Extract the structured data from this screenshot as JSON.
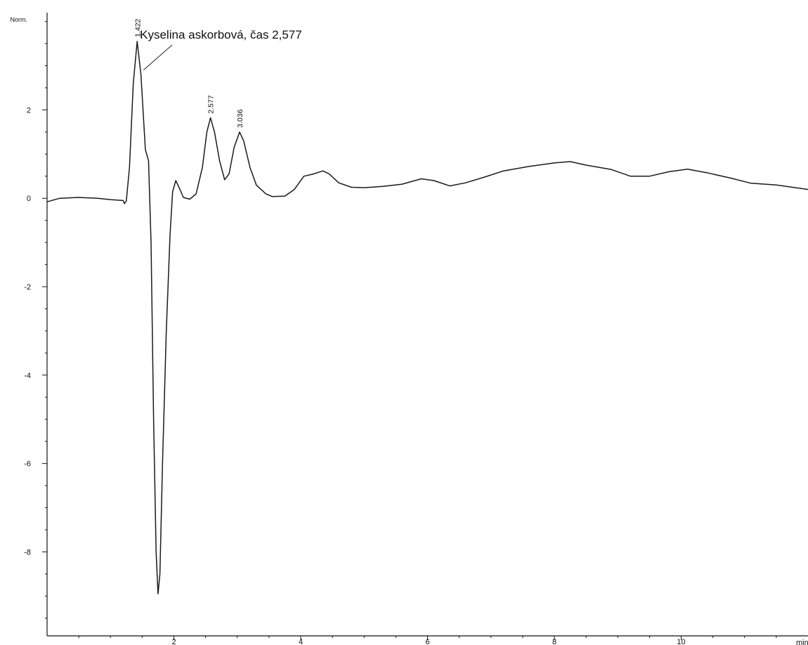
{
  "chart_data": {
    "type": "line",
    "title": "",
    "ylabel": "Norm.",
    "xlabel": "min",
    "xlim": [
      0.0,
      12.0
    ],
    "ylim": [
      -9.9,
      4.2
    ],
    "x_ticks": [
      2,
      4,
      6,
      8,
      10
    ],
    "y_ticks": [
      2,
      0,
      -2,
      -4,
      -6,
      -8
    ],
    "grid": false,
    "line_color": "#1a1a1a",
    "series": [
      {
        "name": "",
        "points": [
          [
            0.0,
            -0.08
          ],
          [
            0.2,
            0.0
          ],
          [
            0.5,
            0.02
          ],
          [
            0.8,
            0.0
          ],
          [
            1.0,
            -0.03
          ],
          [
            1.2,
            -0.05
          ],
          [
            1.22,
            -0.12
          ],
          [
            1.25,
            -0.06
          ],
          [
            1.3,
            0.7
          ],
          [
            1.36,
            2.6
          ],
          [
            1.42,
            3.55
          ],
          [
            1.48,
            2.8
          ],
          [
            1.55,
            1.1
          ],
          [
            1.6,
            0.85
          ],
          [
            1.64,
            -1.0
          ],
          [
            1.68,
            -5.0
          ],
          [
            1.72,
            -8.0
          ],
          [
            1.75,
            -8.95
          ],
          [
            1.78,
            -8.5
          ],
          [
            1.82,
            -6.0
          ],
          [
            1.88,
            -3.0
          ],
          [
            1.94,
            -0.8
          ],
          [
            1.98,
            0.15
          ],
          [
            2.03,
            0.4
          ],
          [
            2.08,
            0.25
          ],
          [
            2.15,
            0.02
          ],
          [
            2.25,
            -0.02
          ],
          [
            2.35,
            0.1
          ],
          [
            2.45,
            0.7
          ],
          [
            2.52,
            1.5
          ],
          [
            2.577,
            1.82
          ],
          [
            2.64,
            1.5
          ],
          [
            2.72,
            0.85
          ],
          [
            2.8,
            0.42
          ],
          [
            2.87,
            0.55
          ],
          [
            2.95,
            1.15
          ],
          [
            3.036,
            1.5
          ],
          [
            3.1,
            1.3
          ],
          [
            3.2,
            0.7
          ],
          [
            3.3,
            0.3
          ],
          [
            3.45,
            0.1
          ],
          [
            3.55,
            0.04
          ],
          [
            3.75,
            0.05
          ],
          [
            3.9,
            0.2
          ],
          [
            4.05,
            0.5
          ],
          [
            4.2,
            0.55
          ],
          [
            4.35,
            0.62
          ],
          [
            4.45,
            0.55
          ],
          [
            4.6,
            0.35
          ],
          [
            4.8,
            0.25
          ],
          [
            5.0,
            0.24
          ],
          [
            5.3,
            0.27
          ],
          [
            5.6,
            0.32
          ],
          [
            5.9,
            0.44
          ],
          [
            6.1,
            0.4
          ],
          [
            6.35,
            0.28
          ],
          [
            6.6,
            0.35
          ],
          [
            6.9,
            0.48
          ],
          [
            7.2,
            0.62
          ],
          [
            7.6,
            0.72
          ],
          [
            8.0,
            0.8
          ],
          [
            8.25,
            0.83
          ],
          [
            8.5,
            0.75
          ],
          [
            8.9,
            0.65
          ],
          [
            9.2,
            0.5
          ],
          [
            9.5,
            0.5
          ],
          [
            9.8,
            0.6
          ],
          [
            10.1,
            0.66
          ],
          [
            10.4,
            0.58
          ],
          [
            10.8,
            0.45
          ],
          [
            11.1,
            0.34
          ],
          [
            11.5,
            0.3
          ],
          [
            11.8,
            0.24
          ],
          [
            12.0,
            0.2
          ]
        ]
      }
    ],
    "peak_labels": [
      {
        "x": 1.422,
        "y": 3.55,
        "label": "1.422"
      },
      {
        "x": 2.577,
        "y": 1.82,
        "label": "2.577"
      },
      {
        "x": 3.036,
        "y": 1.5,
        "label": "3.036"
      }
    ],
    "annotations": [
      {
        "text": "Kyselina askorbová, čas 2,577",
        "x": 1.42,
        "y": 3.7,
        "pointer": [
          1.52,
          2.9
        ]
      }
    ]
  }
}
